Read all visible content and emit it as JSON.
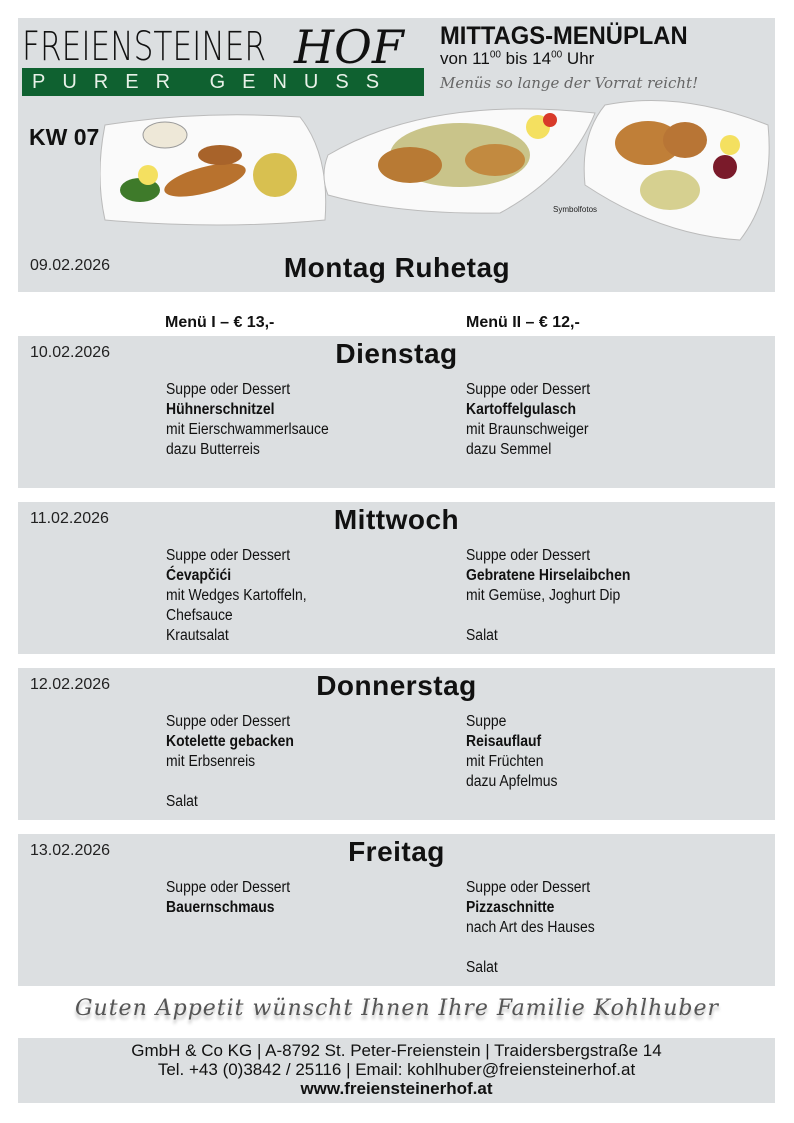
{
  "header": {
    "logo_main": "FREIENSTEINER",
    "logo_hof": "HOF",
    "logo_tagline": "PURER GENUSS",
    "title": "MITTAGS-MENÜPLAN",
    "hours_from": "11",
    "hours_from_sup": "00",
    "hours_to": "14",
    "hours_to_sup": "00",
    "hours_prefix": "von",
    "hours_mid": "bis",
    "hours_suffix": "Uhr",
    "note": "Menüs so lange der Vorrat reicht!",
    "week": "KW 07",
    "photo_note": "Symbolfotos"
  },
  "closed_day": {
    "date": "09.02.2026",
    "title": "Montag Ruhetag"
  },
  "columns": {
    "menu1": "Menü I – € 13,-",
    "menu2": "Menü II – € 12,-"
  },
  "days": [
    {
      "date": "10.02.2026",
      "name": "Dienstag",
      "menu1": [
        "Suppe oder Dessert",
        "Hühnerschnitzel",
        "mit Eierschwammerlsauce",
        "dazu Butterreis"
      ],
      "menu2": [
        "Suppe oder Dessert",
        "Kartoffelgulasch",
        "mit Braunschweiger",
        "dazu Semmel"
      ]
    },
    {
      "date": "11.02.2026",
      "name": "Mittwoch",
      "menu1": [
        "Suppe oder Dessert",
        "Ćevapčići",
        "mit Wedges Kartoffeln,",
        "Chefsauce",
        "Krautsalat"
      ],
      "menu2": [
        "Suppe oder Dessert",
        "Gebratene Hirselaibchen",
        "mit Gemüse, Joghurt Dip",
        "",
        "Salat"
      ]
    },
    {
      "date": "12.02.2026",
      "name": "Donnerstag",
      "menu1": [
        "Suppe oder Dessert",
        "Kotelette gebacken",
        "mit Erbsenreis",
        "",
        "Salat"
      ],
      "menu2": [
        "Suppe",
        "Reisauflauf",
        "mit Früchten",
        "dazu Apfelmus",
        ""
      ]
    },
    {
      "date": "13.02.2026",
      "name": "Freitag",
      "menu1": [
        "Suppe oder Dessert",
        "Bauernschmaus",
        "",
        "",
        ""
      ],
      "menu2": [
        "Suppe oder Dessert",
        "Pizzaschnitte",
        "nach Art des Hauses",
        "",
        "Salat"
      ]
    }
  ],
  "greeting": "Guten Appetit wünscht Ihnen Ihre Familie Kohlhuber",
  "footer": {
    "line1": "GmbH & Co KG | A-8792 St. Peter-Freienstein | Traidersbergstraße 14",
    "line2": "Tel. +43 (0)3842 / 25116 | Email: kohlhuber@freiensteinerhof.at",
    "website": "www.freiensteinerhof.at"
  },
  "colors": {
    "panel": "#dcdfe1",
    "brand_green": "#0f6130"
  }
}
